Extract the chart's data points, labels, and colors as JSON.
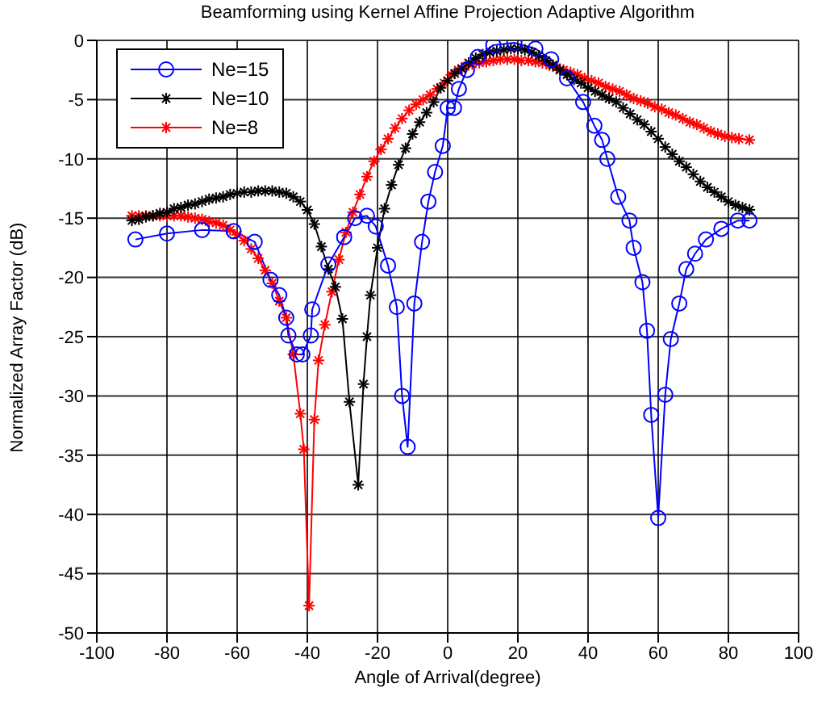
{
  "chart_data": {
    "type": "line",
    "title": "Beamforming using Kernel Affine Projection Adaptive Algorithm",
    "xlabel": "Angle of Arrival(degree)",
    "ylabel": "Normalized Array Factor (dB)",
    "xlim": [
      -100,
      100
    ],
    "xticks": [
      -100,
      -80,
      -60,
      -40,
      -20,
      0,
      20,
      40,
      60,
      80,
      100
    ],
    "ylim": [
      -50,
      0
    ],
    "yticks": [
      -50,
      -45,
      -40,
      -35,
      -30,
      -25,
      -20,
      -15,
      -10,
      -5,
      0
    ],
    "grid": true,
    "legend": "top left",
    "line_style": "solid",
    "series": [
      {
        "name": "Ne=15",
        "color": "#0000ff",
        "marker": "circle",
        "x": [
          -89,
          -80,
          -70,
          -61,
          -55,
          -50.5,
          -48,
          -46,
          -45.4,
          -43,
          -41.4,
          -39,
          -38.6,
          -34,
          -29.5,
          -26.4,
          -23,
          -20.5,
          -17,
          -14.5,
          -13,
          -11.4,
          -9.5,
          -7.3,
          -5.5,
          -3.6,
          -1.4,
          0,
          1.8,
          3.2,
          5.5,
          8.6,
          13,
          19,
          25,
          29.5,
          34,
          38.6,
          41.8,
          44,
          45.5,
          48.6,
          51.8,
          53,
          55.5,
          56.8,
          58,
          60,
          62,
          63.6,
          66,
          68,
          70.5,
          73.6,
          78,
          82.7,
          86
        ],
        "values": [
          -16.8,
          -16.3,
          -16,
          -16.1,
          -17,
          -20.2,
          -21.5,
          -23.4,
          -24.9,
          -26.5,
          -26.5,
          -24.9,
          -22.7,
          -18.9,
          -16.6,
          -15,
          -14.8,
          -15.7,
          -19,
          -22.5,
          -30,
          -34.3,
          -22.2,
          -17,
          -13.6,
          -11.1,
          -8.9,
          -5.7,
          -5.7,
          -4.1,
          -2.5,
          -1.4,
          -0.4,
          -0.2,
          -0.7,
          -1.6,
          -3.2,
          -5.2,
          -7.2,
          -8.4,
          -10,
          -13.2,
          -15.2,
          -17.5,
          -20.4,
          -24.5,
          -31.6,
          -40.3,
          -29.9,
          -25.2,
          -22.2,
          -19.3,
          -18,
          -16.8,
          -15.9,
          -15.2,
          -15.2
        ]
      },
      {
        "name": "Ne=10",
        "color": "#000000",
        "marker": "cross",
        "x": [
          -90,
          -88,
          -86,
          -84,
          -82,
          -80,
          -78,
          -76,
          -74,
          -72,
          -70,
          -68,
          -66,
          -64,
          -62,
          -60,
          -58,
          -56,
          -54,
          -52,
          -50,
          -48,
          -46,
          -44,
          -42,
          -40,
          -38,
          -36,
          -34,
          -32,
          -30,
          -28,
          -25.5,
          -24,
          -23,
          -22,
          -20,
          -18,
          -16,
          -14,
          -12,
          -10,
          -8,
          -6,
          -4,
          -2,
          0,
          2,
          4,
          6,
          8,
          10,
          12,
          14,
          16,
          18,
          20,
          22,
          24,
          26,
          28,
          30,
          32,
          34,
          36,
          38,
          40,
          42,
          44,
          46,
          48,
          50,
          52,
          54,
          56,
          58,
          60,
          62,
          64,
          66,
          68,
          70,
          72,
          74,
          76,
          78,
          80,
          82,
          84,
          86
        ],
        "values": [
          -15.2,
          -15.1,
          -14.9,
          -14.8,
          -14.6,
          -14.5,
          -14.2,
          -14.1,
          -13.9,
          -13.8,
          -13.6,
          -13.4,
          -13.3,
          -13.2,
          -13,
          -12.9,
          -12.8,
          -12.8,
          -12.7,
          -12.7,
          -12.7,
          -12.8,
          -12.9,
          -13.2,
          -13.6,
          -14.3,
          -15.5,
          -17.4,
          -19.3,
          -20.8,
          -23.5,
          -30.5,
          -37.5,
          -29,
          -25,
          -21.5,
          -17.5,
          -14.2,
          -12.2,
          -10.5,
          -9.1,
          -7.9,
          -6.9,
          -6.1,
          -5.2,
          -4,
          -3.4,
          -2.8,
          -2.4,
          -1.9,
          -1.5,
          -1.2,
          -1,
          -0.9,
          -0.8,
          -0.7,
          -0.7,
          -0.8,
          -1,
          -1.3,
          -1.7,
          -2.1,
          -2.5,
          -2.9,
          -3.3,
          -3.6,
          -4,
          -4.3,
          -4.6,
          -4.9,
          -5.2,
          -5.7,
          -6.2,
          -6.7,
          -7.1,
          -7.7,
          -8.3,
          -9,
          -9.6,
          -10.2,
          -10.7,
          -11.3,
          -11.9,
          -12.4,
          -12.8,
          -13.2,
          -13.6,
          -13.9,
          -14.1,
          -14.3
        ]
      },
      {
        "name": "Ne=8",
        "color": "#ff0000",
        "marker": "cross",
        "x": [
          -90,
          -88,
          -86,
          -84,
          -82,
          -80,
          -78,
          -76,
          -74,
          -72,
          -70,
          -68,
          -66,
          -64,
          -62,
          -60,
          -58,
          -56,
          -54,
          -52,
          -50,
          -48,
          -46,
          -44,
          -42,
          -41,
          -39.5,
          -38,
          -36.8,
          -35,
          -33,
          -31,
          -29,
          -27,
          -25,
          -23,
          -21,
          -19,
          -17,
          -15,
          -13,
          -11,
          -9,
          -7,
          -5,
          -3,
          -1,
          1,
          3,
          5,
          7,
          9,
          11,
          13,
          15,
          17,
          19,
          21,
          23,
          25,
          27,
          29,
          31,
          33,
          35,
          37,
          39,
          41,
          43,
          45,
          47,
          49,
          51,
          53,
          55,
          57,
          59,
          61,
          63,
          65,
          67,
          69,
          71,
          73,
          75,
          77,
          79,
          81,
          83,
          86
        ],
        "values": [
          -14.8,
          -14.8,
          -14.8,
          -14.8,
          -14.8,
          -14.8,
          -14.8,
          -14.8,
          -14.9,
          -15,
          -15.1,
          -15.3,
          -15.4,
          -15.6,
          -16,
          -16.4,
          -16.9,
          -17.6,
          -18.4,
          -19.4,
          -20.5,
          -22,
          -23.4,
          -26.5,
          -31.5,
          -34.5,
          -47.7,
          -32,
          -27,
          -24,
          -21.2,
          -18.5,
          -16.2,
          -14.5,
          -13,
          -11.5,
          -10.2,
          -9.2,
          -8.3,
          -7.4,
          -6.6,
          -5.9,
          -5.4,
          -5,
          -4.6,
          -4.1,
          -3.6,
          -2.9,
          -2.5,
          -2.2,
          -2,
          -1.9,
          -1.8,
          -1.7,
          -1.6,
          -1.6,
          -1.6,
          -1.7,
          -1.7,
          -1.8,
          -1.9,
          -2.1,
          -2.3,
          -2.5,
          -2.7,
          -2.9,
          -3.2,
          -3.4,
          -3.6,
          -3.9,
          -4.1,
          -4.3,
          -4.6,
          -4.9,
          -5.1,
          -5.3,
          -5.6,
          -5.8,
          -6.1,
          -6.3,
          -6.6,
          -6.9,
          -7.1,
          -7.4,
          -7.7,
          -7.9,
          -8.1,
          -8.2,
          -8.3,
          -8.4
        ]
      }
    ]
  }
}
